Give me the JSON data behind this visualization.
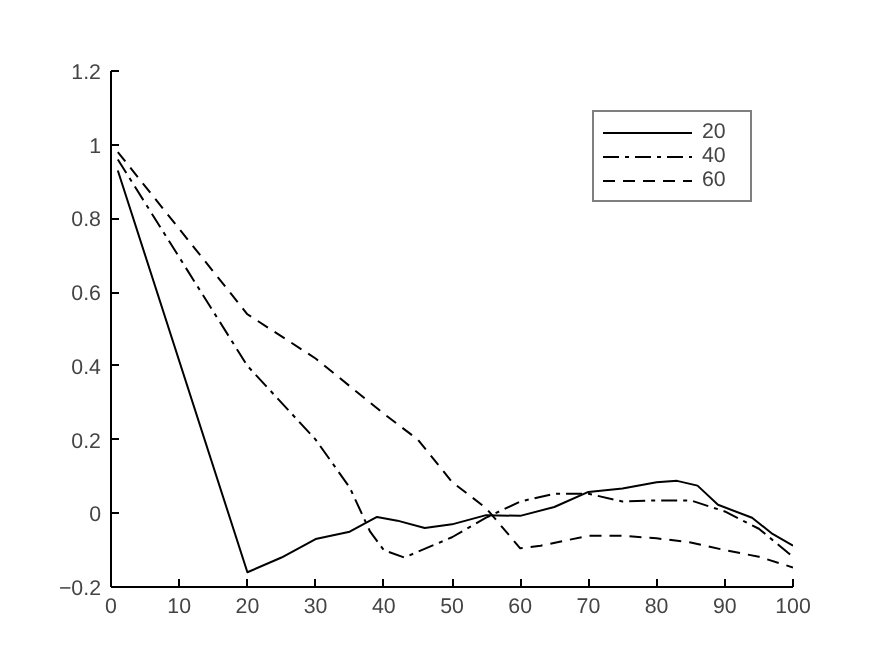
{
  "chart_data": {
    "type": "line",
    "xlim": [
      0,
      100
    ],
    "ylim": [
      -0.2,
      1.2
    ],
    "xticks": [
      0,
      10,
      20,
      30,
      40,
      50,
      60,
      70,
      80,
      90,
      100
    ],
    "yticks": [
      -0.2,
      0,
      0.2,
      0.4,
      0.6,
      0.8,
      1,
      1.2
    ],
    "grid": false,
    "legend": "top right",
    "series": [
      {
        "name": "20",
        "color": "#000000",
        "line_style": "solid",
        "x": [
          1,
          20,
          25,
          30,
          35,
          39,
          42,
          46,
          50,
          55,
          60,
          65,
          70,
          75,
          80,
          83,
          86,
          89,
          94,
          97,
          100
        ],
        "values": [
          0.93,
          -0.16,
          -0.12,
          -0.07,
          -0.05,
          -0.01,
          -0.02,
          -0.04,
          -0.03,
          -0.005,
          -0.007,
          0.017,
          0.058,
          0.067,
          0.084,
          0.088,
          0.075,
          0.023,
          -0.012,
          -0.056,
          -0.088
        ]
      },
      {
        "name": "40",
        "color": "#000000",
        "line_style": "dashdot",
        "x": [
          1,
          20,
          30,
          35,
          38,
          40,
          43,
          50,
          55,
          60,
          65,
          70,
          75,
          80,
          85,
          90,
          95,
          100
        ],
        "values": [
          0.96,
          0.4,
          0.2,
          0.07,
          -0.05,
          -0.1,
          -0.12,
          -0.065,
          -0.012,
          0.032,
          0.053,
          0.053,
          0.032,
          0.035,
          0.035,
          0.005,
          -0.042,
          -0.118
        ]
      },
      {
        "name": "60",
        "color": "#000000",
        "line_style": "dashed",
        "x": [
          1,
          20,
          30,
          40,
          45,
          50,
          55,
          60,
          63,
          70,
          75,
          80,
          85,
          90,
          95,
          100
        ],
        "values": [
          0.98,
          0.54,
          0.42,
          0.27,
          0.2,
          0.085,
          0.014,
          -0.095,
          -0.088,
          -0.061,
          -0.061,
          -0.068,
          -0.079,
          -0.1,
          -0.118,
          -0.147
        ]
      }
    ]
  }
}
